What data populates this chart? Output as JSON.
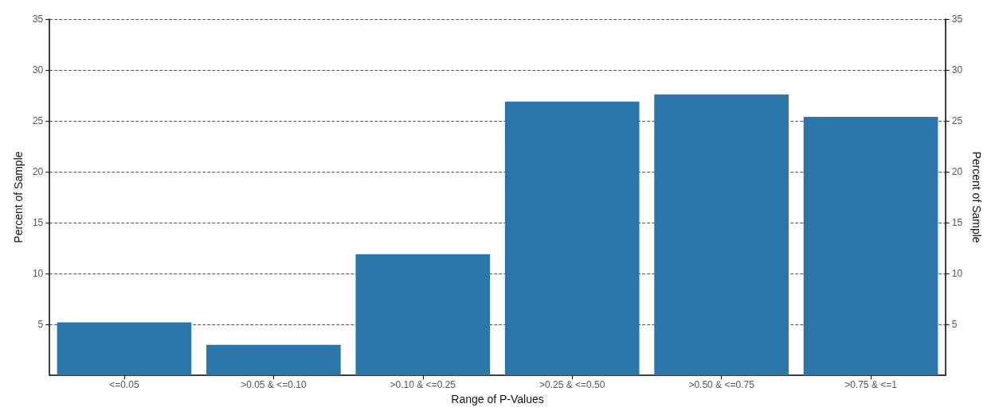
{
  "chart_data": {
    "type": "bar",
    "categories": [
      "<=0.05",
      ">0.05 & <=0.10",
      ">0.10 & <=0.25",
      ">0.25 & <=0.50",
      ">0.50 & <=0.75",
      ">0.75 & <=1"
    ],
    "values": [
      5.2,
      3.0,
      11.9,
      26.9,
      27.6,
      25.4
    ],
    "color": "#2a76a8",
    "xlabel": "Range of P-Values",
    "ylabel": "Percent of Sample",
    "y2label": "Percent of Sample",
    "ylim": [
      0,
      35
    ],
    "yticks": [
      5,
      10,
      15,
      20,
      25,
      30,
      35
    ],
    "y2lim": [
      0,
      35
    ],
    "y2ticks": [
      5,
      10,
      15,
      20,
      25,
      30,
      35
    ],
    "grid": "y"
  }
}
